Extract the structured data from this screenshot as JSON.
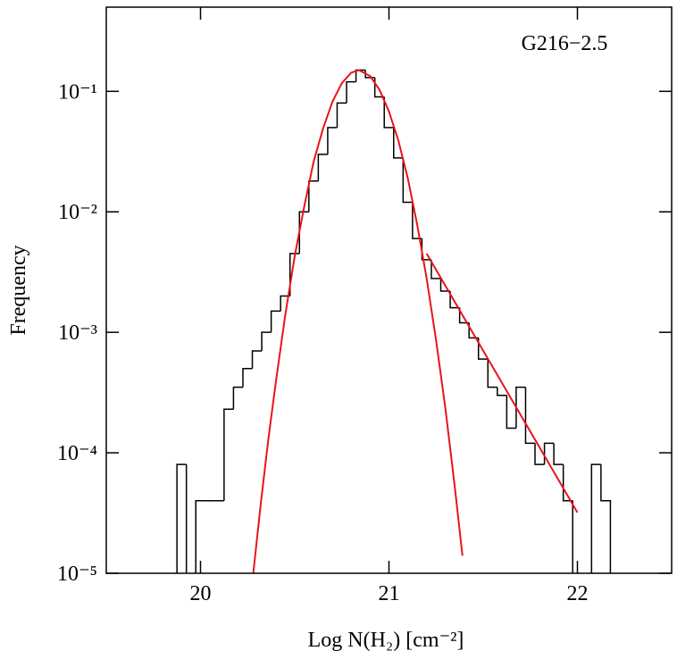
{
  "chart_data": {
    "type": "histogram",
    "annotation": "G216−2.5",
    "x_label": "Log N(H₂) [cm⁻²]",
    "y_label": "Frequency",
    "log_y": true,
    "xlim": [
      19.5,
      22.5
    ],
    "ylim": [
      1e-05,
      0.5
    ],
    "xticks": [
      20,
      21,
      22
    ],
    "yticks": [
      {
        "value": 0.1,
        "label": "10⁻¹"
      },
      {
        "value": 0.01,
        "label": "10⁻²"
      },
      {
        "value": 0.001,
        "label": "10⁻³"
      },
      {
        "value": 0.0001,
        "label": "10⁻⁴"
      },
      {
        "value": 1e-05,
        "label": "10⁻⁵"
      }
    ],
    "color": "#000000",
    "bins": [
      19.875,
      19.925,
      19.975,
      20.025,
      20.075,
      20.125,
      20.175,
      20.225,
      20.275,
      20.325,
      20.375,
      20.425,
      20.475,
      20.525,
      20.575,
      20.625,
      20.675,
      20.725,
      20.775,
      20.825,
      20.875,
      20.925,
      20.975,
      21.025,
      21.075,
      21.125,
      21.175,
      21.225,
      21.275,
      21.325,
      21.375,
      21.425,
      21.475,
      21.525,
      21.575,
      21.625,
      21.675,
      21.725,
      21.775,
      21.825,
      21.875,
      21.925,
      21.975,
      22.025,
      22.075,
      22.125,
      22.175
    ],
    "values": [
      8e-05,
      0,
      4e-05,
      4e-05,
      4e-05,
      0.00023,
      0.00035,
      0.0005,
      0.0007,
      0.001,
      0.0015,
      0.002,
      0.0045,
      0.01,
      0.018,
      0.03,
      0.05,
      0.08,
      0.12,
      0.15,
      0.13,
      0.09,
      0.05,
      0.028,
      0.012,
      0.006,
      0.004,
      0.0028,
      0.0022,
      0.0016,
      0.0012,
      0.0009,
      0.0006,
      0.00035,
      0.0003,
      0.00016,
      0.00035,
      0.00012,
      8e-05,
      0.00012,
      8e-05,
      4e-05,
      0,
      0,
      8e-05,
      4e-05
    ],
    "fits": [
      {
        "color": "#e8141b",
        "x": [
          20.28,
          20.32,
          20.36,
          20.4,
          20.45,
          20.5,
          20.55,
          20.6,
          20.65,
          20.7,
          20.75,
          20.8,
          20.84,
          20.9,
          20.95,
          21.0,
          21.05,
          21.1,
          21.15,
          21.2,
          21.25,
          21.3,
          21.35,
          21.39
        ],
        "values": [
          1e-05,
          3.8e-05,
          0.00013,
          0.00039,
          0.0014,
          0.0043,
          0.011,
          0.026,
          0.049,
          0.082,
          0.117,
          0.143,
          0.15,
          0.134,
          0.103,
          0.068,
          0.039,
          0.019,
          0.0078,
          0.0028,
          0.00086,
          0.00023,
          5.1e-05,
          1.4e-05
        ]
      },
      {
        "color": "#e8141b",
        "x": [
          21.2,
          22.0
        ],
        "values": [
          0.0045,
          3.2e-05
        ]
      }
    ]
  }
}
